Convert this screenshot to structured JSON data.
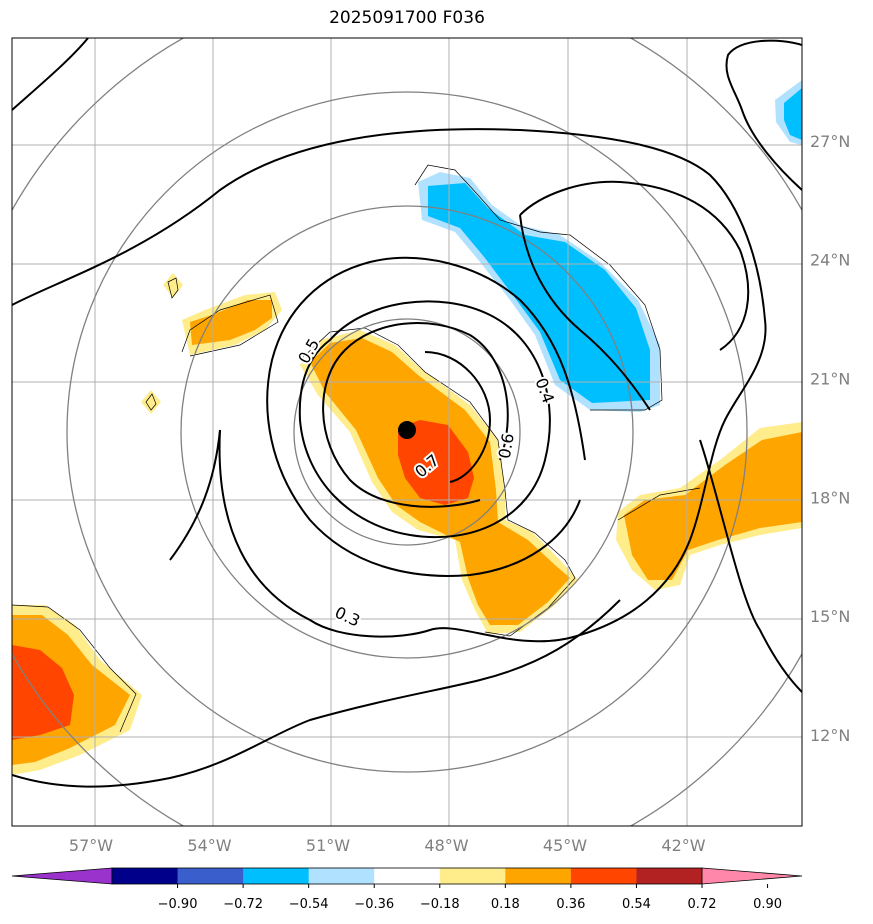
{
  "title": "2025091700 F036",
  "map": {
    "lon_range": [
      -59,
      -39
    ],
    "lat_range": [
      9.7,
      29.6
    ],
    "lon_ticks": [
      {
        "value": -57,
        "label": "57°W"
      },
      {
        "value": -54,
        "label": "54°W"
      },
      {
        "value": -51,
        "label": "51°W"
      },
      {
        "value": -48,
        "label": "48°W"
      },
      {
        "value": -45,
        "label": "45°W"
      },
      {
        "value": -42,
        "label": "42°W"
      }
    ],
    "lat_ticks": [
      {
        "value": 27,
        "label": "27°N"
      },
      {
        "value": 24,
        "label": "24°N"
      },
      {
        "value": 21,
        "label": "21°N"
      },
      {
        "value": 18,
        "label": "18°N"
      },
      {
        "value": 15,
        "label": "15°N"
      },
      {
        "value": 12,
        "label": "12°N"
      }
    ],
    "center": {
      "lon": -49.0,
      "lat": 19.7
    },
    "contour_labels": [
      {
        "text": "0.3",
        "lon": -50.5,
        "lat": 15.0,
        "rotate": 25
      },
      {
        "text": "0.4",
        "lon": -45.5,
        "lat": 20.7,
        "rotate": 70
      },
      {
        "text": "0.5",
        "lon": -51.5,
        "lat": 21.7,
        "rotate": -60
      },
      {
        "text": "0.6",
        "lon": -46.5,
        "lat": 19.3,
        "rotate": -80
      },
      {
        "text": "0.7",
        "lon": -48.5,
        "lat": 18.8,
        "rotate": -40
      }
    ]
  },
  "colorbar": {
    "levels": [
      "−0.90",
      "−0.72",
      "−0.54",
      "−0.36",
      "−0.18",
      "0.18",
      "0.36",
      "0.54",
      "0.72",
      "0.90"
    ],
    "colors": [
      "#9933cc",
      "#00008b",
      "#3a5fcd",
      "#00bfff",
      "#b0e2ff",
      "#ffffff",
      "#ffec8b",
      "#ffa500",
      "#ff4500",
      "#b22222",
      "#ff88aa"
    ]
  }
}
